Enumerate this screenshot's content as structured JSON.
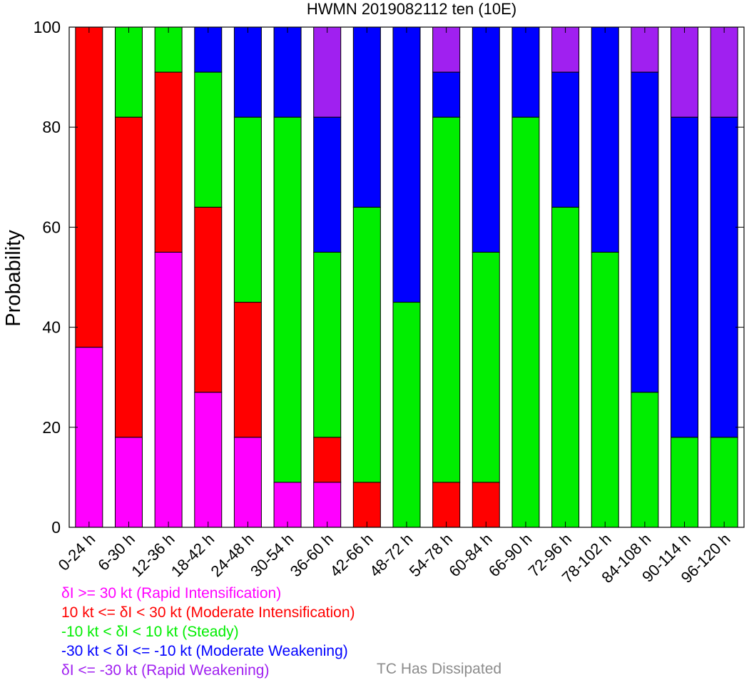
{
  "chart_data": {
    "type": "bar",
    "stacked": true,
    "title": "HWMN 2019082112 ten (10E)",
    "ylabel": "Probability",
    "xlabel": "",
    "ylim": [
      0,
      100
    ],
    "yticks": [
      0,
      20,
      40,
      60,
      80,
      100
    ],
    "grid": false,
    "categories": [
      "0-24 h",
      "6-30 h",
      "12-36 h",
      "18-42 h",
      "24-48 h",
      "30-54 h",
      "36-60 h",
      "42-66 h",
      "48-72 h",
      "54-78 h",
      "60-84 h",
      "66-90 h",
      "72-96 h",
      "78-102 h",
      "84-108 h",
      "90-114 h",
      "96-120 h"
    ],
    "series": [
      {
        "key": "ri",
        "name": "δI >= 30 kt (Rapid Intensification)",
        "color": "#ff00ff",
        "values": [
          36,
          18,
          55,
          27,
          18,
          9,
          9,
          0,
          0,
          0,
          0,
          0,
          0,
          0,
          0,
          0,
          0
        ]
      },
      {
        "key": "mi",
        "name": "10 kt <= δI < 30 kt (Moderate Intensification)",
        "color": "#ff0000",
        "values": [
          64,
          64,
          36,
          37,
          27,
          0,
          9,
          9,
          0,
          9,
          9,
          0,
          0,
          0,
          0,
          0,
          0
        ]
      },
      {
        "key": "st",
        "name": "-10 kt < δI < 10 kt (Steady)",
        "color": "#00ee00",
        "values": [
          0,
          18,
          9,
          27,
          37,
          73,
          37,
          55,
          45,
          73,
          46,
          82,
          64,
          55,
          27,
          18,
          18
        ]
      },
      {
        "key": "mw",
        "name": "-30 kt < δI <= -10 kt (Moderate Weakening)",
        "color": "#0000ff",
        "values": [
          0,
          0,
          0,
          9,
          18,
          18,
          27,
          36,
          55,
          9,
          45,
          18,
          27,
          45,
          64,
          64,
          64
        ]
      },
      {
        "key": "rw",
        "name": "δI <= -30 kt (Rapid Weakening)",
        "color": "#a020f0",
        "values": [
          0,
          0,
          0,
          0,
          0,
          0,
          18,
          0,
          0,
          9,
          0,
          0,
          9,
          0,
          9,
          18,
          18
        ]
      }
    ],
    "legend_placement": "bottom-left",
    "legend_extra": {
      "label": "TC Has Dissipated",
      "color": "#8c8c8c"
    }
  }
}
